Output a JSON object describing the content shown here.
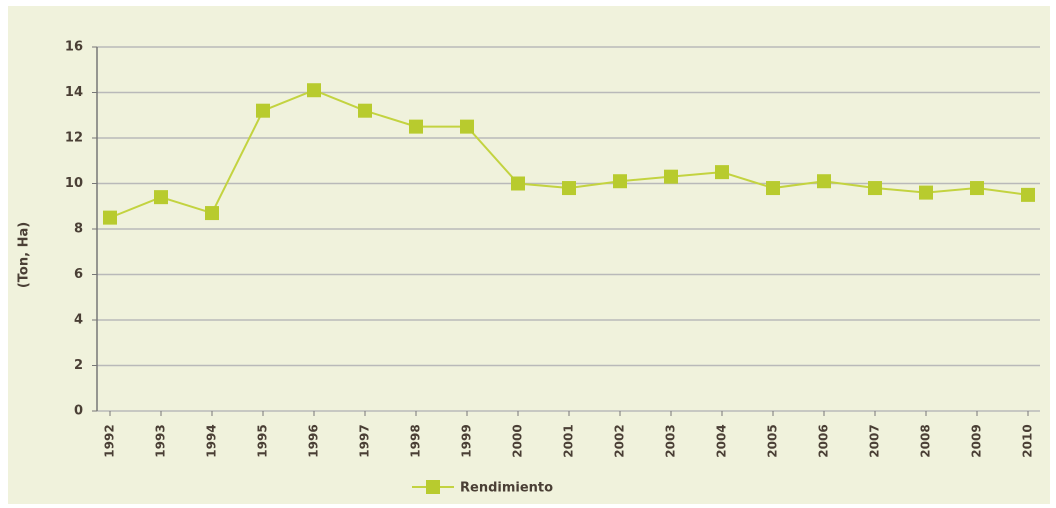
{
  "chart_data": {
    "type": "line",
    "y_label": "(Ton, Ha)",
    "categories": [
      "1992",
      "1993",
      "1994",
      "1995",
      "1996",
      "1997",
      "1998",
      "1999",
      "2000",
      "2001",
      "2002",
      "2003",
      "2004",
      "2005",
      "2006",
      "2007",
      "2008",
      "2009",
      "2010"
    ],
    "series": [
      {
        "name": "Rendimiento",
        "color": "#c3d340",
        "values": [
          8.5,
          9.4,
          8.7,
          13.2,
          14.1,
          13.2,
          12.5,
          12.5,
          10.0,
          9.8,
          10.1,
          10.3,
          10.5,
          9.8,
          10.1,
          9.8,
          9.6,
          9.8,
          9.5
        ]
      }
    ],
    "ylim": [
      0,
      16
    ],
    "yticks": [
      0,
      2,
      4,
      6,
      8,
      10,
      12,
      14,
      16
    ],
    "grid": true,
    "legend": "bottom"
  }
}
